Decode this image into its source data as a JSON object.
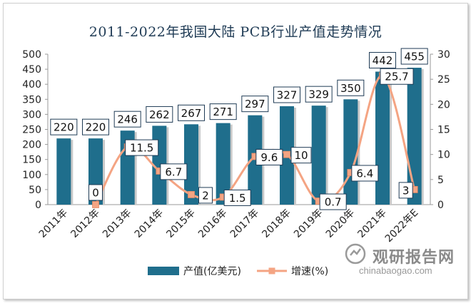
{
  "header": {
    "title": "2011-2022年我国大陆 PCB行业产值走势情况"
  },
  "watermark": {
    "brand": "观研报告网",
    "site": "chinabaogao.com"
  },
  "chart_data": {
    "type": "bar",
    "categories": [
      "2011年",
      "2012年",
      "2013年",
      "2014年",
      "2015年",
      "2016年",
      "2017年",
      "2018年",
      "2019年",
      "2020年",
      "2021年",
      "2022年E"
    ],
    "series": [
      {
        "name": "产值(亿美元)",
        "type": "bar",
        "axis": "left",
        "color": "#1f6e8c",
        "values": [
          220,
          220,
          246,
          262,
          267,
          271,
          297,
          327,
          329,
          350,
          442,
          455
        ]
      },
      {
        "name": "增速(%)",
        "type": "line",
        "axis": "right",
        "color": "#f4a483",
        "values": [
          null,
          0,
          11.5,
          6.7,
          2,
          1.5,
          9.6,
          10,
          0.7,
          6.4,
          25.7,
          3
        ]
      }
    ],
    "left_axis": {
      "ylim": [
        0,
        500
      ],
      "ticks": [
        0,
        50,
        100,
        150,
        200,
        250,
        300,
        350,
        400,
        450,
        500
      ]
    },
    "right_axis": {
      "ylim": [
        0,
        30
      ],
      "ticks": [
        0,
        5,
        10,
        15,
        20,
        25,
        30
      ]
    },
    "legend": "bottom",
    "grid": false
  }
}
